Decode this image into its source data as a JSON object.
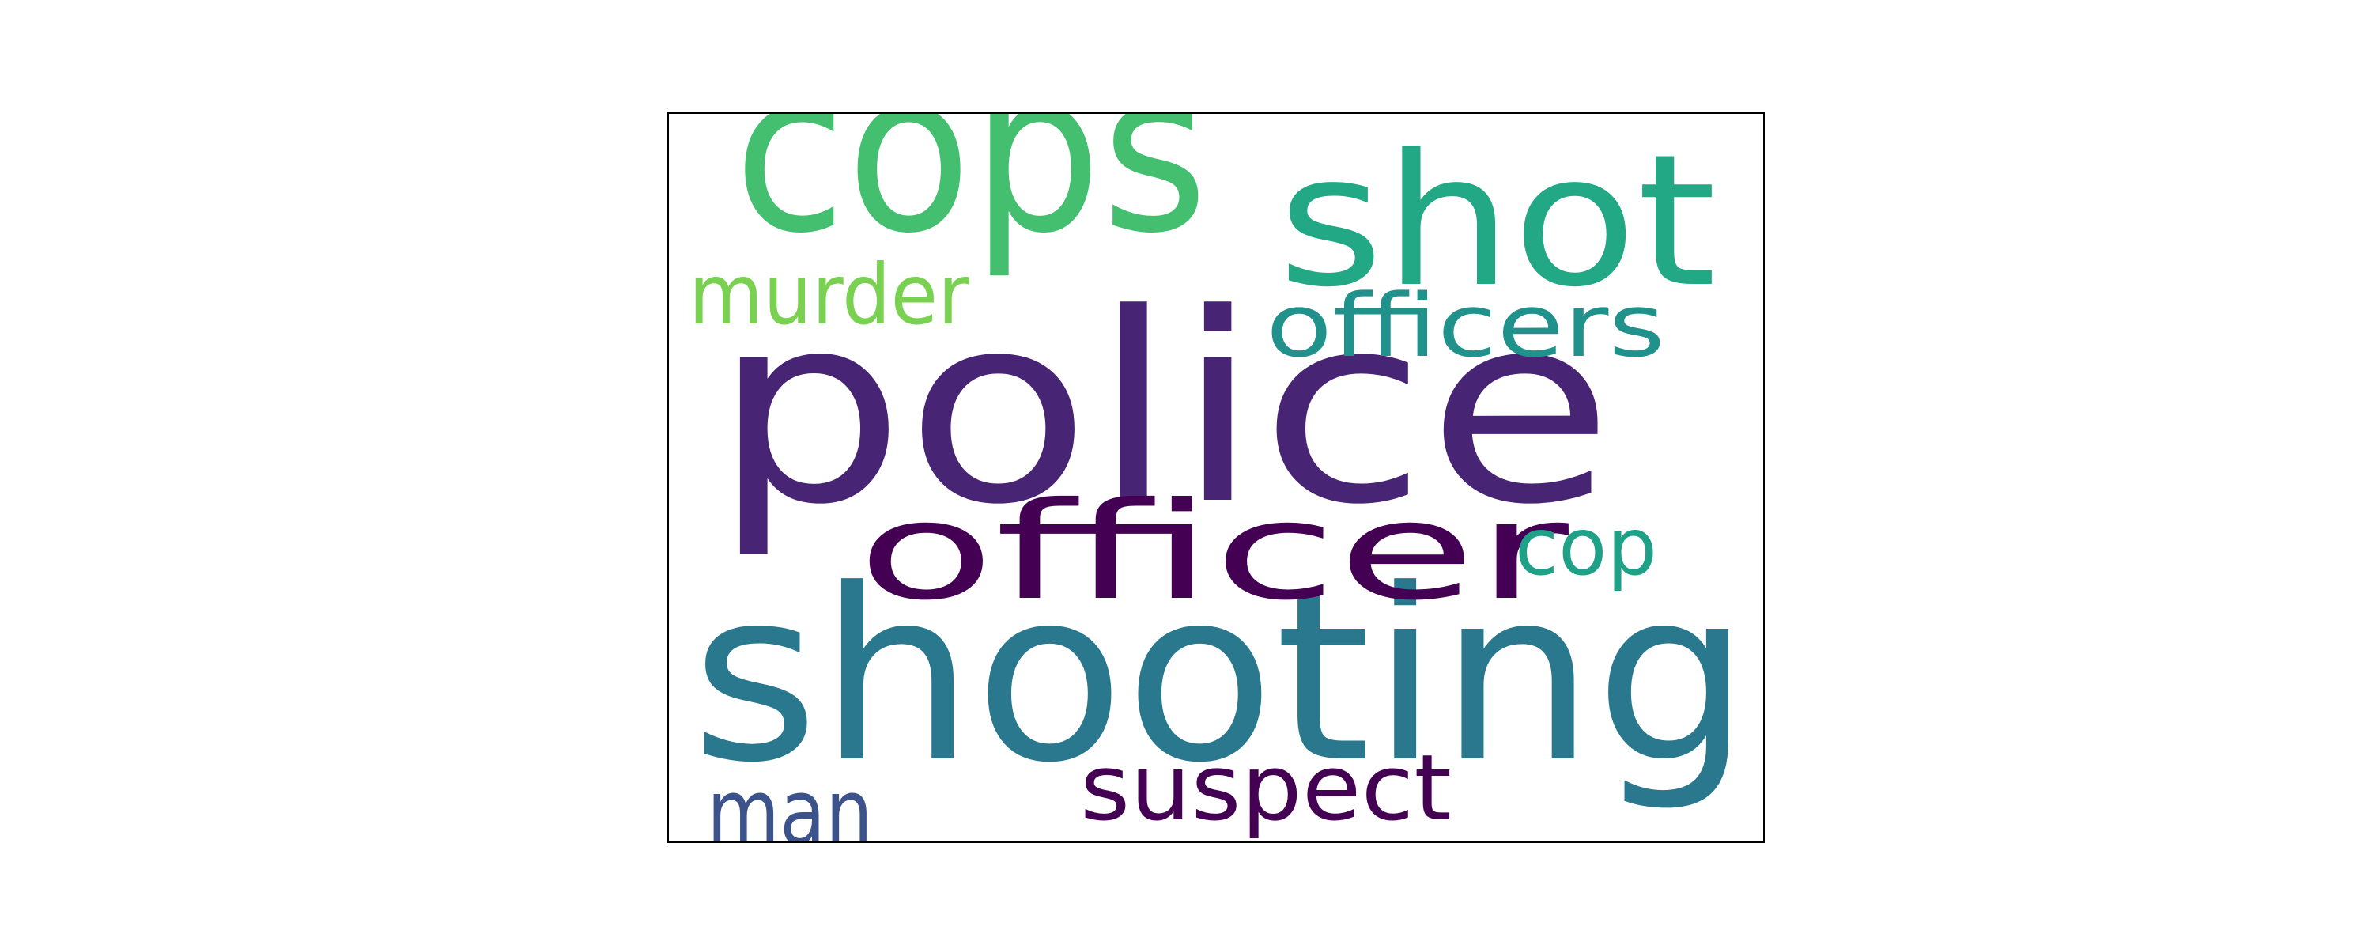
{
  "words": [
    {
      "text": "police",
      "color": "#482475"
    },
    {
      "text": "shooting",
      "color": "#2a788e"
    },
    {
      "text": "cops",
      "color": "#44bf70"
    },
    {
      "text": "shot",
      "color": "#22a884"
    },
    {
      "text": "officer",
      "color": "#440154"
    },
    {
      "text": "officers",
      "color": "#21918c"
    },
    {
      "text": "murder",
      "color": "#7ad151"
    },
    {
      "text": "cop",
      "color": "#1fa187"
    },
    {
      "text": "suspect",
      "color": "#440154"
    },
    {
      "text": "man",
      "color": "#3b528b"
    }
  ]
}
